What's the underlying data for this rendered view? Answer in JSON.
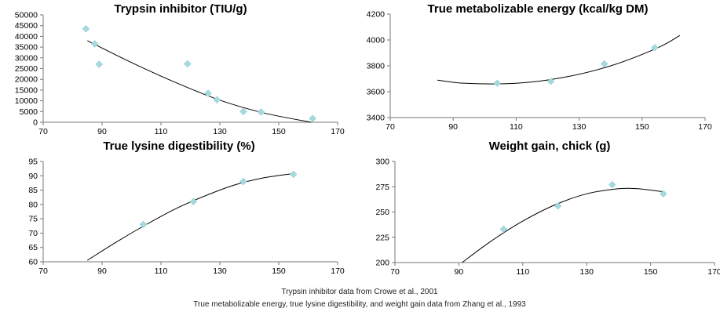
{
  "chart_data": [
    {
      "type": "scatter",
      "title": "Trypsin inhibitor (TIU/g)",
      "xlim": [
        70,
        170
      ],
      "ylim": [
        0,
        50000
      ],
      "x_ticks": [
        "70",
        "90",
        "110",
        "130",
        "150",
        "170"
      ],
      "y_ticks": [
        "0",
        "5000",
        "10000",
        "15000",
        "20000",
        "25000",
        "30000",
        "35000",
        "40000",
        "45000",
        "50000"
      ],
      "points": [
        [
          84.5,
          43500
        ],
        [
          87.5,
          36500
        ],
        [
          89,
          27000
        ],
        [
          119,
          27200
        ],
        [
          126,
          13500
        ],
        [
          129,
          10500
        ],
        [
          138,
          5000
        ],
        [
          144,
          4800
        ],
        [
          161.5,
          1800
        ]
      ],
      "trendline": {
        "x": [
          85,
          100,
          115,
          130,
          145,
          161
        ],
        "y": [
          38000,
          27800,
          18500,
          10300,
          4300,
          0
        ]
      }
    },
    {
      "type": "scatter",
      "title": "True metabolizable energy (kcal/kg DM)",
      "xlim": [
        70,
        170
      ],
      "ylim": [
        3400,
        4200
      ],
      "x_ticks": [
        "70",
        "90",
        "110",
        "130",
        "150",
        "170"
      ],
      "y_ticks": [
        "3400",
        "3600",
        "3800",
        "4000",
        "4200"
      ],
      "points": [
        [
          104,
          3665
        ],
        [
          121,
          3680
        ],
        [
          138,
          3815
        ],
        [
          154,
          3940
        ]
      ],
      "trendline": {
        "x": [
          85,
          94,
          110,
          125,
          140,
          155,
          162
        ],
        "y": [
          3690,
          3665,
          3665,
          3710,
          3800,
          3940,
          4035
        ]
      }
    },
    {
      "type": "scatter",
      "title": "True lysine digestibility (%)",
      "xlim": [
        70,
        170
      ],
      "ylim": [
        60,
        95
      ],
      "x_ticks": [
        "70",
        "90",
        "110",
        "130",
        "150",
        "170"
      ],
      "y_ticks": [
        "60",
        "65",
        "70",
        "75",
        "80",
        "85",
        "90",
        "95"
      ],
      "points": [
        [
          104,
          73
        ],
        [
          121,
          81
        ],
        [
          138,
          88
        ],
        [
          155,
          90.5
        ]
      ],
      "trendline": {
        "x": [
          85,
          95,
          105,
          115,
          125,
          135,
          145,
          155
        ],
        "y": [
          60.5,
          67,
          73,
          78.5,
          83,
          86.8,
          89.3,
          90.8
        ]
      }
    },
    {
      "type": "scatter",
      "title": "Weight gain, chick (g)",
      "xlim": [
        70,
        170
      ],
      "ylim": [
        200,
        300
      ],
      "x_ticks": [
        "70",
        "90",
        "110",
        "130",
        "150",
        "170"
      ],
      "y_ticks": [
        "200",
        "225",
        "250",
        "275",
        "300"
      ],
      "points": [
        [
          104,
          233
        ],
        [
          121,
          256
        ],
        [
          138,
          277
        ],
        [
          154,
          268
        ]
      ],
      "trendline": {
        "x": [
          91,
          100,
          110,
          120,
          130,
          140,
          146,
          154
        ],
        "y": [
          200,
          221,
          241,
          257,
          268,
          273,
          273,
          270
        ]
      }
    }
  ],
  "footnotes": {
    "line1": "Trypsin inhibitor data from Crowe et al., 2001",
    "line2": "True metabolizable energy, true lysine digestibility, and weight gain data from Zhang et al., 1993"
  }
}
